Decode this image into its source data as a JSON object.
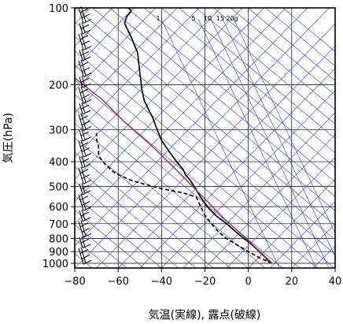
{
  "chart_data": {
    "type": "line",
    "title": "",
    "xlabel": "気温(実線), 露点(破線)",
    "ylabel": "気圧(hPa)",
    "xlim": [
      -80,
      40
    ],
    "ylim": [
      1050,
      100
    ],
    "yscale": "log",
    "x_ticks": [
      -80,
      -60,
      -40,
      -20,
      0,
      20,
      40
    ],
    "x_tick_labels": [
      "−80",
      "−60",
      "−40",
      "−20",
      "0",
      "20",
      "40"
    ],
    "y_ticks": [
      100,
      200,
      300,
      400,
      500,
      600,
      700,
      800,
      900,
      1000
    ],
    "y_tick_labels": [
      "100",
      "200",
      "300",
      "400",
      "500",
      "600",
      "700",
      "800",
      "900",
      "1000"
    ],
    "mixing_ratio_labels": [
      "1",
      "5",
      "10",
      "15",
      "20g"
    ],
    "grid": true,
    "series": [
      {
        "style": "solid",
        "color": "#000000",
        "points": [
          [
            10,
            1000
          ],
          [
            8,
            950
          ],
          [
            5,
            900
          ],
          [
            2,
            850
          ],
          [
            -2,
            800
          ],
          [
            -6,
            750
          ],
          [
            -10,
            700
          ],
          [
            -15,
            650
          ],
          [
            -19,
            600
          ],
          [
            -22,
            550
          ],
          [
            -25,
            500
          ],
          [
            -27,
            470
          ],
          [
            -29,
            450
          ],
          [
            -30,
            430
          ],
          [
            -33,
            400
          ],
          [
            -37,
            360
          ],
          [
            -40,
            330
          ],
          [
            -42,
            300
          ],
          [
            -44,
            270
          ],
          [
            -46,
            250
          ],
          [
            -48,
            230
          ],
          [
            -49,
            210
          ],
          [
            -50,
            180
          ],
          [
            -51,
            150
          ],
          [
            -54,
            130
          ],
          [
            -57,
            115
          ],
          [
            -56,
            108
          ],
          [
            -54,
            103
          ],
          [
            -55,
            100
          ]
        ]
      },
      {
        "style": "dashed",
        "color": "#000000",
        "points": [
          [
            11,
            1000
          ],
          [
            5,
            950
          ],
          [
            0,
            900
          ],
          [
            -5,
            850
          ],
          [
            -10,
            800
          ],
          [
            -14,
            750
          ],
          [
            -17,
            700
          ],
          [
            -20,
            650
          ],
          [
            -22,
            600
          ],
          [
            -24,
            550
          ],
          [
            -30,
            530
          ],
          [
            -40,
            510
          ],
          [
            -48,
            490
          ],
          [
            -55,
            470
          ],
          [
            -62,
            440
          ],
          [
            -66,
            410
          ],
          [
            -69,
            380
          ],
          [
            -69,
            350
          ],
          [
            -70,
            325
          ],
          [
            -70,
            310
          ]
        ]
      },
      {
        "style": "solid",
        "color": "#a0285a",
        "points": [
          [
            11,
            1000
          ],
          [
            -1,
            800
          ],
          [
            -11,
            670
          ],
          [
            -20,
            560
          ],
          [
            -31,
            450
          ],
          [
            -44,
            350
          ],
          [
            -57,
            280
          ],
          [
            -67,
            230
          ],
          [
            -76,
            200
          ],
          [
            -80,
            188
          ]
        ]
      }
    ],
    "wind_barb_count": 48
  }
}
